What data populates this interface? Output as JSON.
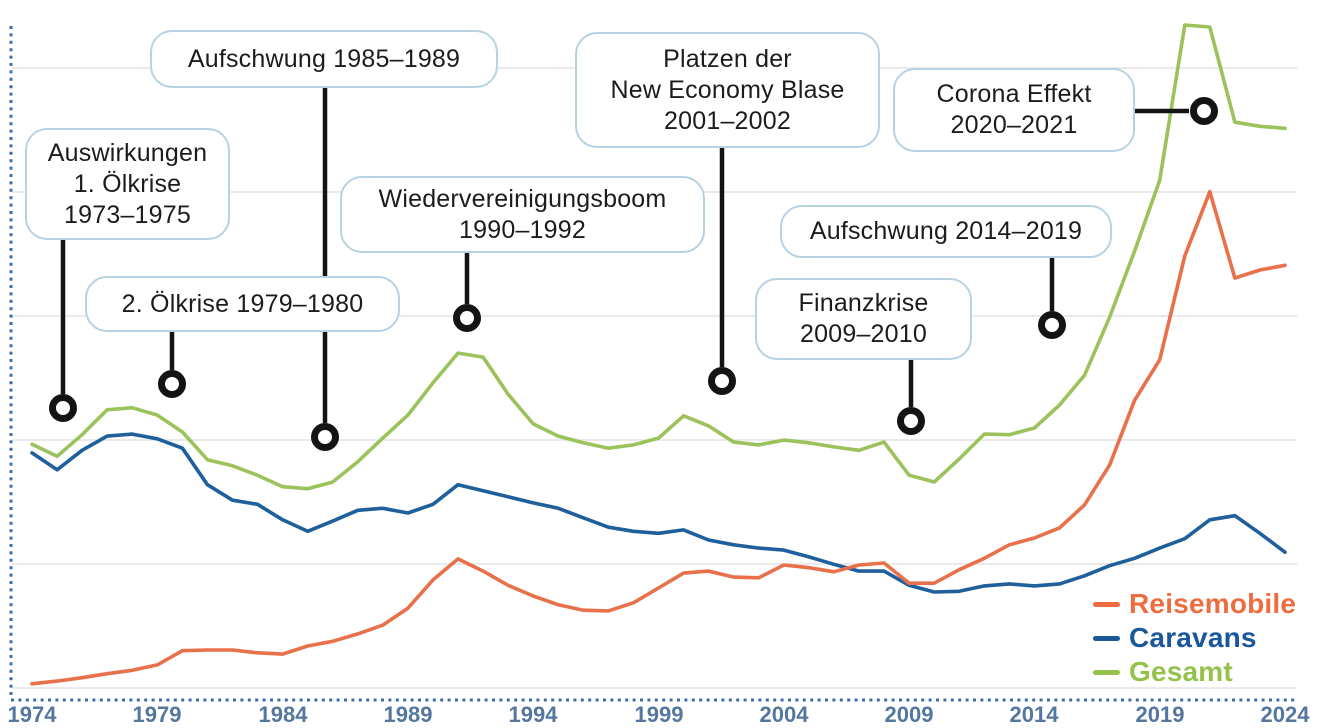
{
  "figure": {
    "background": "#ffffff",
    "axis_dotted_color": "#3f6fa9",
    "gridline_color": "#e4e4e4",
    "connector_color": "#141414",
    "marker_style": "black-ring-white-fill",
    "note": "y axis has no visible labels; series values are a relative 0-100 scale read from pixel positions (100 = 2020 Gesamt peak)"
  },
  "annotations": [
    {
      "id": "auswirkungen-oelkrise-1",
      "lines": [
        "Auswirkungen",
        "1. Ölkrise",
        "1973–1975"
      ]
    },
    {
      "id": "aufschwung-1985",
      "lines": [
        "Aufschwung 1985–1989"
      ]
    },
    {
      "id": "oelkrise-2",
      "lines": [
        "2. Ölkrise 1979–1980"
      ]
    },
    {
      "id": "wiedervereinigungsboom",
      "lines": [
        "Wiedervereinigungsboom",
        "1990–1992"
      ]
    },
    {
      "id": "platzen-new-economy",
      "lines": [
        "Platzen der",
        "New Economy Blase",
        "2001–2002"
      ]
    },
    {
      "id": "corona-effekt",
      "lines": [
        "Corona Effekt",
        "2020–2021"
      ]
    },
    {
      "id": "aufschwung-2014",
      "lines": [
        "Aufschwung 2014–2019"
      ]
    },
    {
      "id": "finanzkrise",
      "lines": [
        "Finanzkrise",
        "2009–2010"
      ]
    }
  ],
  "legend": {
    "items": [
      {
        "label": "Reisemobile",
        "color": "#ed6d3f"
      },
      {
        "label": "Caravans",
        "color": "#1a579c"
      },
      {
        "label": "Gesamt",
        "color": "#95c24b"
      }
    ]
  },
  "chart_data": {
    "type": "line",
    "title": "",
    "xlabel": "",
    "ylabel": "",
    "x_start": 1974,
    "x_end": 2024,
    "x_tick_labels": [
      "1974",
      "1979",
      "1984",
      "1989",
      "1994",
      "1999",
      "2004",
      "2009",
      "2014",
      "2019",
      "2024"
    ],
    "grid": "horizontal",
    "legend_position": "bottom-right",
    "ylim": [
      0,
      105
    ],
    "series": [
      {
        "name": "Gesamt",
        "color": "#9cc25b",
        "values": [
          37.9,
          36.1,
          39.3,
          43.0,
          43.3,
          42.2,
          39.7,
          35.6,
          34.7,
          33.3,
          31.6,
          31.3,
          32.3,
          35.3,
          38.8,
          42.2,
          47.0,
          51.4,
          50.8,
          45.3,
          40.9,
          39.1,
          38.1,
          37.3,
          37.8,
          38.8,
          42.1,
          40.6,
          38.2,
          37.8,
          38.5,
          38.1,
          37.5,
          37.0,
          38.2,
          33.3,
          32.3,
          35.7,
          39.4,
          39.3,
          40.3,
          43.7,
          48.1,
          56.7,
          66.5,
          77.0,
          100.0,
          99.7,
          85.6,
          85.0,
          84.7
        ]
      },
      {
        "name": "Caravans",
        "color": "#1f5f9c",
        "values": [
          36.6,
          34.1,
          37.0,
          39.1,
          39.4,
          38.7,
          37.3,
          31.9,
          29.6,
          29.0,
          26.7,
          25.0,
          26.5,
          28.1,
          28.4,
          27.7,
          29.0,
          31.9,
          31.0,
          30.1,
          29.2,
          28.4,
          27.0,
          25.6,
          25.0,
          24.7,
          25.2,
          23.7,
          23.0,
          22.5,
          22.2,
          21.2,
          20.1,
          19.1,
          19.1,
          17.0,
          16.0,
          16.1,
          16.9,
          17.2,
          16.9,
          17.2,
          18.4,
          19.9,
          21.0,
          22.5,
          23.9,
          26.7,
          27.3,
          24.7,
          21.9
        ]
      },
      {
        "name": "Reisemobile",
        "color": "#e8704a",
        "values": [
          2.4,
          2.8,
          3.3,
          3.9,
          4.4,
          5.2,
          7.3,
          7.4,
          7.4,
          7.0,
          6.8,
          8.0,
          8.7,
          9.8,
          11.1,
          13.6,
          17.8,
          20.9,
          19.1,
          17.0,
          15.4,
          14.1,
          13.3,
          13.2,
          14.4,
          16.6,
          18.8,
          19.1,
          18.2,
          18.1,
          20.0,
          19.6,
          19.0,
          20.0,
          20.3,
          17.3,
          17.3,
          19.3,
          21.0,
          23.0,
          24.0,
          25.5,
          28.9,
          34.8,
          44.4,
          50.4,
          65.8,
          75.3,
          62.5,
          63.7,
          64.4
        ]
      }
    ]
  }
}
